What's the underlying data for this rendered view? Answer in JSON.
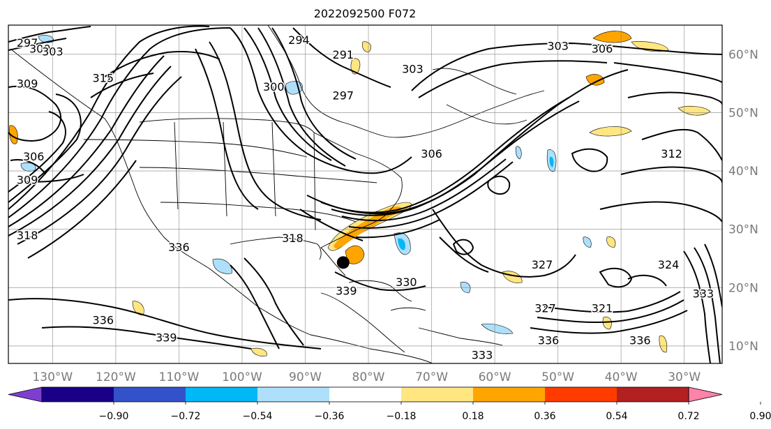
{
  "title": "2022092500 F072",
  "map": {
    "lon_range": [
      -137,
      -24
    ],
    "lat_range": [
      7,
      65
    ],
    "lon_ticks": [
      {
        "value": -130,
        "label": "130°W"
      },
      {
        "value": -120,
        "label": "120°W"
      },
      {
        "value": -110,
        "label": "110°W"
      },
      {
        "value": -100,
        "label": "100°W"
      },
      {
        "value": -90,
        "label": "90°W"
      },
      {
        "value": -80,
        "label": "80°W"
      },
      {
        "value": -70,
        "label": "70°W"
      },
      {
        "value": -60,
        "label": "60°W"
      },
      {
        "value": -50,
        "label": "50°W"
      },
      {
        "value": -40,
        "label": "40°W"
      },
      {
        "value": -30,
        "label": "30°W"
      }
    ],
    "lat_ticks": [
      {
        "value": 60,
        "label": "60°N"
      },
      {
        "value": 50,
        "label": "50°N"
      },
      {
        "value": 40,
        "label": "40°N"
      },
      {
        "value": 30,
        "label": "30°N"
      },
      {
        "value": 20,
        "label": "20°N"
      },
      {
        "value": 10,
        "label": "10°N"
      }
    ],
    "storm_marker": {
      "lon": -84,
      "lat": 24.3
    },
    "contour_labels": [
      {
        "text": "297",
        "lon": -134,
        "lat": 62
      },
      {
        "text": "300",
        "lon": -132,
        "lat": 61
      },
      {
        "text": "303",
        "lon": -130,
        "lat": 60.5
      },
      {
        "text": "315",
        "lon": -122,
        "lat": 56
      },
      {
        "text": "309",
        "lon": -134,
        "lat": 55
      },
      {
        "text": "306",
        "lon": -133,
        "lat": 42.5
      },
      {
        "text": "309",
        "lon": -134,
        "lat": 38.5
      },
      {
        "text": "318",
        "lon": -134,
        "lat": 29
      },
      {
        "text": "294",
        "lon": -91,
        "lat": 62.5
      },
      {
        "text": "291",
        "lon": -84,
        "lat": 60
      },
      {
        "text": "303",
        "lon": -73,
        "lat": 57.5
      },
      {
        "text": "297",
        "lon": -84,
        "lat": 53
      },
      {
        "text": "303",
        "lon": -50,
        "lat": 61.5
      },
      {
        "text": "306",
        "lon": -43,
        "lat": 61
      },
      {
        "text": "300",
        "lon": -95,
        "lat": 54.5
      },
      {
        "text": "306",
        "lon": -70,
        "lat": 43
      },
      {
        "text": "312",
        "lon": -32,
        "lat": 43
      },
      {
        "text": "318",
        "lon": -92,
        "lat": 28.5
      },
      {
        "text": "336",
        "lon": -110,
        "lat": 27
      },
      {
        "text": "339",
        "lon": -83.5,
        "lat": 19.5
      },
      {
        "text": "330",
        "lon": -74,
        "lat": 21
      },
      {
        "text": "336",
        "lon": -122,
        "lat": 14.5
      },
      {
        "text": "339",
        "lon": -112,
        "lat": 11.5
      },
      {
        "text": "333",
        "lon": -62,
        "lat": 8.5
      },
      {
        "text": "336",
        "lon": -51.5,
        "lat": 11
      },
      {
        "text": "327",
        "lon": -52,
        "lat": 16.5
      },
      {
        "text": "336",
        "lon": -37,
        "lat": 11
      },
      {
        "text": "324",
        "lon": -32.5,
        "lat": 24
      },
      {
        "text": "333",
        "lon": -27,
        "lat": 19
      },
      {
        "text": "321",
        "lon": -43,
        "lat": 16.5
      },
      {
        "text": "327",
        "lon": -52.5,
        "lat": 24
      }
    ]
  },
  "colorbar": {
    "labels": [
      "−0.90",
      "−0.72",
      "−0.54",
      "−0.36",
      "−0.18",
      "0.18",
      "0.36",
      "0.54",
      "0.72",
      "0.90"
    ],
    "colors": [
      "#7e3fd1",
      "#1a0087",
      "#3352c9",
      "#00b8f5",
      "#aee0fb",
      "#ffffff",
      "#ffe680",
      "#ffa500",
      "#ff3b00",
      "#b32020",
      "#ff82a8"
    ]
  },
  "colors": {
    "frame": "#000000",
    "grid": "#808080",
    "tick_label": "#7a7a7a",
    "shade_pos": "#ffa500",
    "shade_pos_light": "#ffe680",
    "shade_neg": "#00b8f5",
    "shade_neg_light": "#aee0fb"
  }
}
